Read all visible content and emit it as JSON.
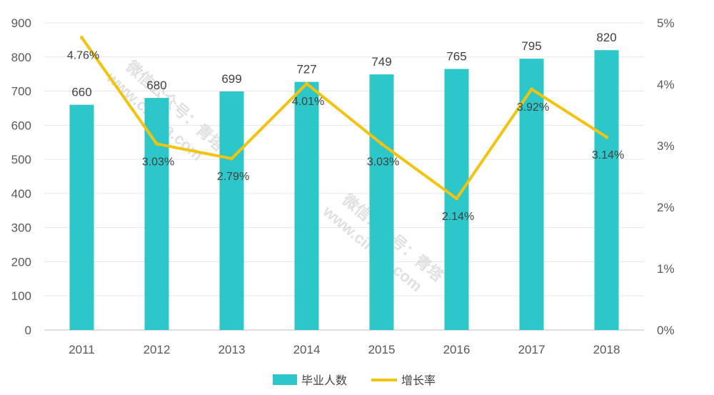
{
  "chart_data": {
    "type": "bar+line",
    "categories": [
      "2011",
      "2012",
      "2013",
      "2014",
      "2015",
      "2016",
      "2017",
      "2018"
    ],
    "series": [
      {
        "name": "毕业人数",
        "type": "bar",
        "axis": "left",
        "color": "#2ec7c9",
        "values": [
          660,
          680,
          699,
          727,
          749,
          765,
          795,
          820
        ],
        "labels": [
          "660",
          "680",
          "699",
          "727",
          "749",
          "765",
          "795",
          "820"
        ]
      },
      {
        "name": "增长率",
        "type": "line",
        "axis": "right",
        "color": "#f2c40f",
        "values": [
          4.76,
          3.03,
          2.79,
          4.01,
          3.03,
          2.14,
          3.92,
          3.14
        ],
        "labels": [
          "4.76%",
          "3.03%",
          "2.79%",
          "4.01%",
          "3.03%",
          "2.14%",
          "3.92%",
          "3.14%"
        ]
      }
    ],
    "y_left": {
      "range": [
        0,
        900
      ],
      "ticks": [
        "0",
        "100",
        "200",
        "300",
        "400",
        "500",
        "600",
        "700",
        "800",
        "900"
      ]
    },
    "y_right": {
      "range": [
        0,
        5
      ],
      "ticks": [
        "0%",
        "1%",
        "2%",
        "3%",
        "4%",
        "5%"
      ]
    },
    "grid": true,
    "legend": "bottom-center"
  },
  "watermarks": [
    {
      "line1": "微信公众号：青塔",
      "line2": "www.cingta.com"
    },
    {
      "line1": "微信公众号：青塔",
      "line2": "www.cingta.com"
    }
  ]
}
